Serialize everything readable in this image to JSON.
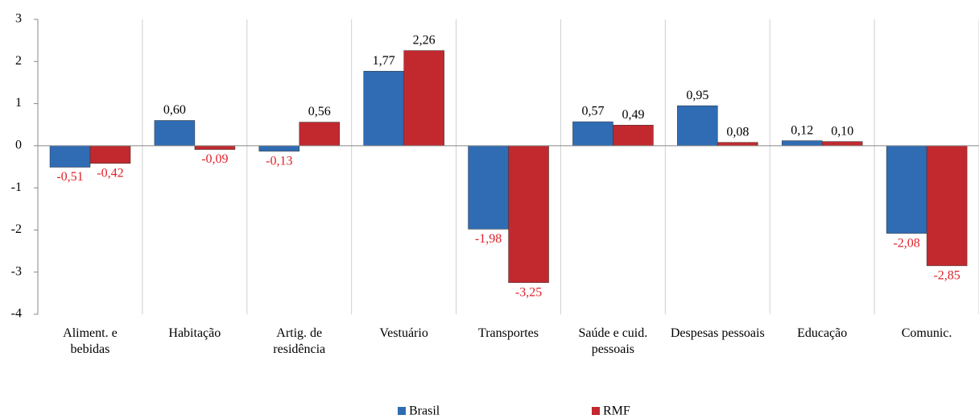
{
  "chart_data": {
    "type": "bar",
    "categories": [
      "Aliment. e bebidas",
      "Habitação",
      "Artig. de residência",
      "Vestuário",
      "Transportes",
      "Saúde e cuid. pessoais",
      "Despesas pessoais",
      "Educação",
      "Comunic."
    ],
    "series": [
      {
        "name": "Brasil",
        "color": "#2f6cb4",
        "values": [
          -0.51,
          0.6,
          -0.13,
          1.77,
          -1.98,
          0.57,
          0.95,
          0.12,
          -2.08
        ],
        "value_labels": [
          "-0,51",
          "0,60",
          "-0,13",
          "1,77",
          "-1,98",
          "0,57",
          "0,95",
          "0,12",
          "-2,08"
        ]
      },
      {
        "name": "RMF",
        "color": "#c2292e",
        "values": [
          -0.42,
          -0.09,
          0.56,
          2.26,
          -3.25,
          0.49,
          0.08,
          0.1,
          -2.85
        ],
        "value_labels": [
          "-0,42",
          "-0,09",
          "0,56",
          "2,26",
          "-3,25",
          "0,49",
          "0,08",
          "0,10",
          "-2,85"
        ]
      }
    ],
    "ylim": [
      -4,
      3
    ],
    "yticks": [
      -4,
      -3,
      -2,
      -1,
      0,
      1,
      2,
      3
    ],
    "grid": false,
    "legend": "bottom"
  }
}
